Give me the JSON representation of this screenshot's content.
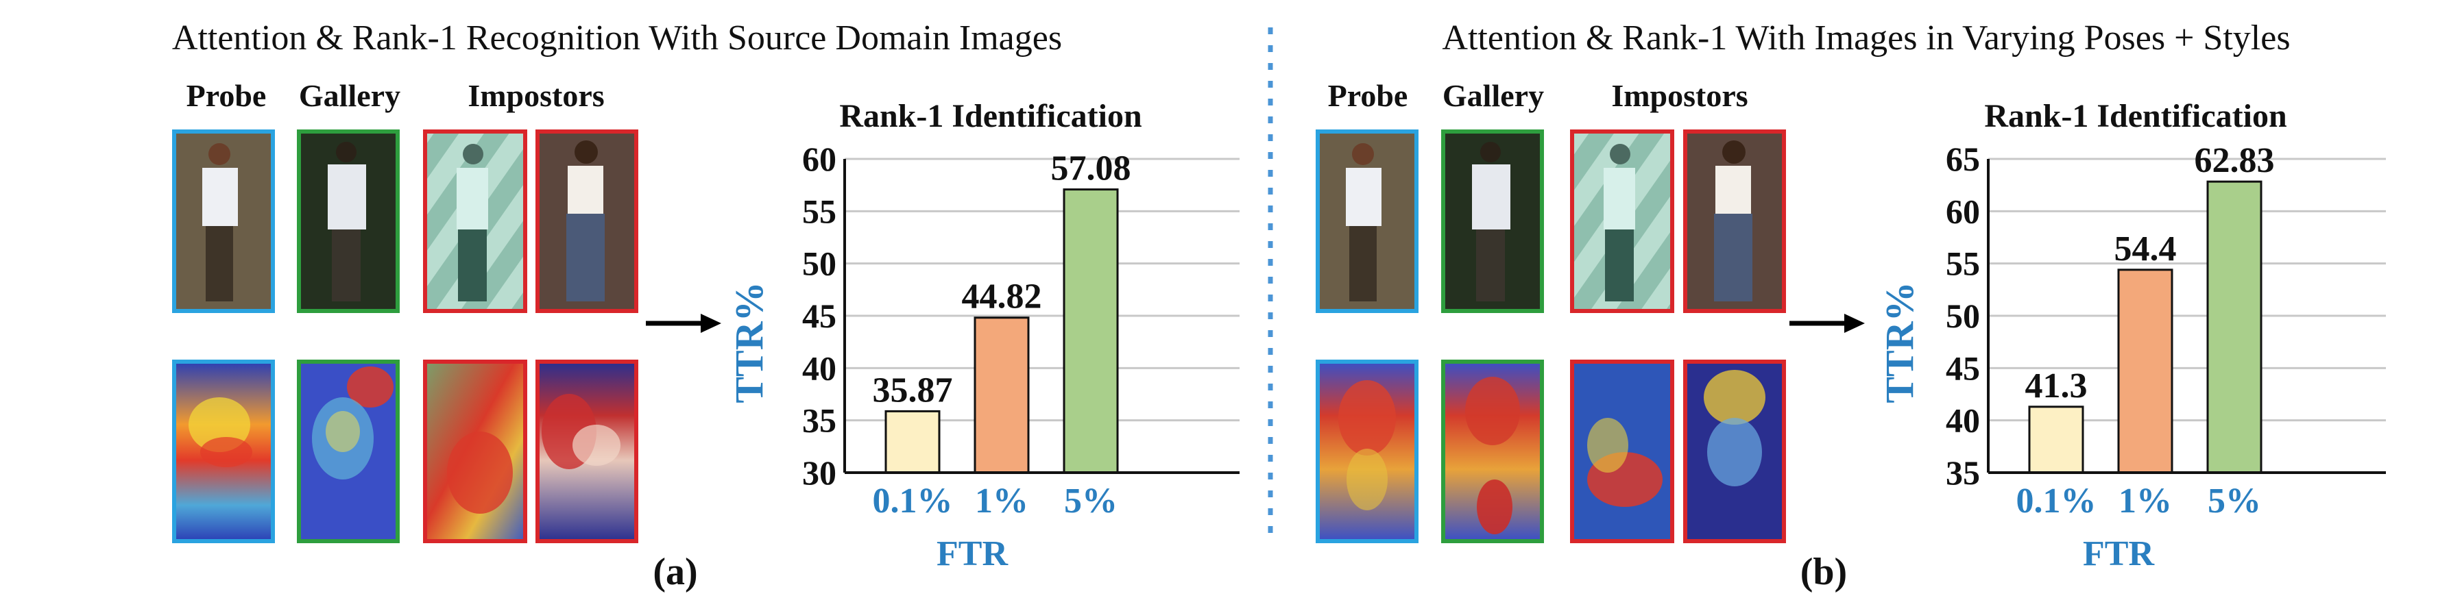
{
  "panels": [
    {
      "title": "Attention & Rank-1 Recognition With Source Domain Images",
      "column_headers": [
        "Probe",
        "Gallery",
        "Impostors"
      ],
      "label": "(a)"
    },
    {
      "title": "Attention & Rank-1 With Images in Varying Poses + Styles",
      "column_headers": [
        "Probe",
        "Gallery",
        "Impostors"
      ],
      "label": "(b)"
    }
  ],
  "colors": {
    "probe_border": "#2aa3e0",
    "gallery_border": "#2e9e3e",
    "impostor_border": "#d9262a",
    "axis_label": "#2a7fc0",
    "bar_0_1": "#fdf0c4",
    "bar_1": "#f3a87a",
    "bar_5": "#a9cf8b",
    "separator": "#4b95d6"
  },
  "chart_data": [
    {
      "type": "bar",
      "title": "Rank-1 Identification",
      "categories": [
        "0.1%",
        "1%",
        "5%"
      ],
      "values": [
        35.87,
        44.82,
        57.08
      ],
      "value_labels": [
        "35.87",
        "44.82",
        "57.08"
      ],
      "xlabel": "FTR",
      "ylabel": "TTR%",
      "ylim": [
        30,
        60
      ],
      "yticks": [
        "30",
        "35",
        "40",
        "45",
        "50",
        "55",
        "60"
      ],
      "grid": true
    },
    {
      "type": "bar",
      "title": "Rank-1 Identification",
      "categories": [
        "0.1%",
        "1%",
        "5%"
      ],
      "values": [
        41.3,
        54.4,
        62.83
      ],
      "value_labels": [
        "41.3",
        "54.4",
        "62.83"
      ],
      "xlabel": "FTR",
      "ylabel": "TTR%",
      "ylim": [
        35,
        65
      ],
      "yticks": [
        "35",
        "40",
        "45",
        "50",
        "55",
        "60",
        "65"
      ],
      "grid": true
    }
  ]
}
